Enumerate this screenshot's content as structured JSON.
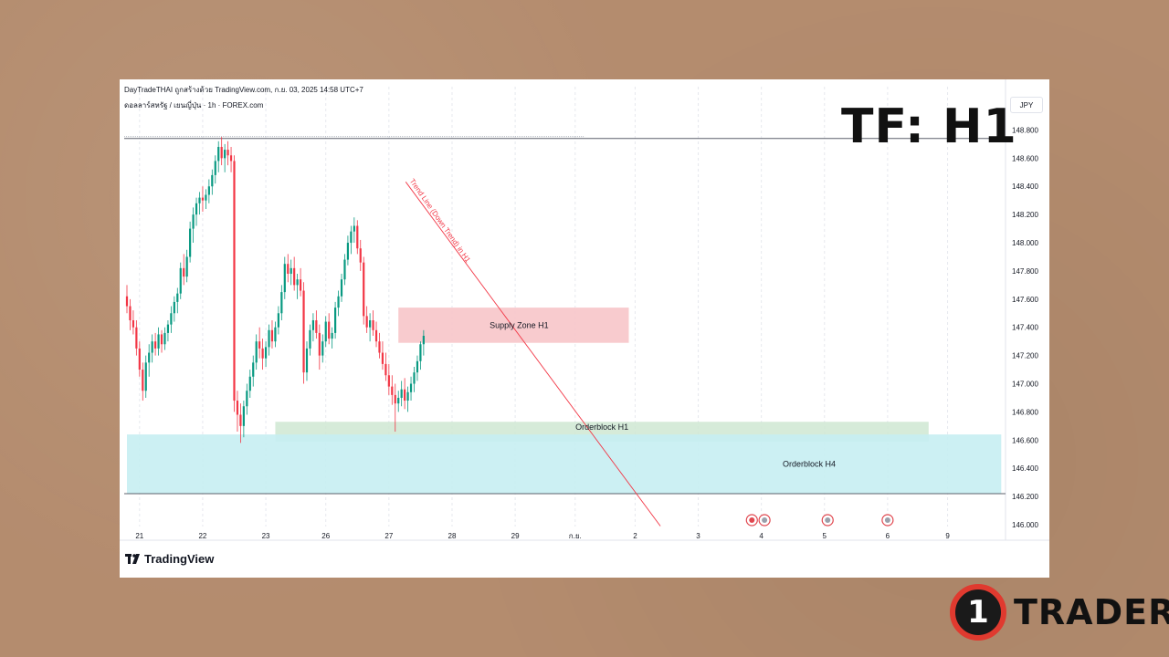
{
  "header": {
    "line1": "DayTradeTHAI ถูกสร้างด้วย TradingView.com, ก.ย. 03, 2025 14:58 UTC+7",
    "line2": "ดอลลาร์สหรัฐ / เยนญี่ปุ่น · 1h · FOREX.com"
  },
  "currency": "JPY",
  "tf_label": "TF: H1",
  "brand": {
    "tradingview": "TradingView",
    "logo_number": "1",
    "logo_text": "TRADER"
  },
  "colors": {
    "up": "#089981",
    "down": "#f23645",
    "supply_zone": "#f7c5c9",
    "ob_h1": "#cfe8d2",
    "ob_h4": "#c7eef2",
    "trendline": "#f23645",
    "grid": "#e6e8ee"
  },
  "chart_data": {
    "type": "candlestick",
    "ylim": [
      146.0,
      148.9
    ],
    "y_ticks": [
      "148.800",
      "148.600",
      "148.400",
      "148.200",
      "148.000",
      "147.800",
      "147.600",
      "147.400",
      "147.200",
      "147.000",
      "146.800",
      "146.600",
      "146.400",
      "146.200",
      "146.000"
    ],
    "x_ticks": [
      {
        "label": "21",
        "t": 4
      },
      {
        "label": "22",
        "t": 24
      },
      {
        "label": "23",
        "t": 44
      },
      {
        "label": "26",
        "t": 63
      },
      {
        "label": "27",
        "t": 83
      },
      {
        "label": "28",
        "t": 103
      },
      {
        "label": "29",
        "t": 123
      },
      {
        "label": "ก.ย.",
        "t": 142
      },
      {
        "label": "2",
        "t": 161
      },
      {
        "label": "3",
        "t": 181
      },
      {
        "label": "4",
        "t": 201
      },
      {
        "label": "5",
        "t": 221
      },
      {
        "label": "6",
        "t": 241
      },
      {
        "label": "9",
        "t": 260
      }
    ],
    "zones": [
      {
        "name": "Supply Zone H1",
        "t1": 86,
        "t2": 159,
        "y_low": 147.29,
        "y_high": 147.54
      },
      {
        "name": "Orderblock H1",
        "t1": 47,
        "t2": 254,
        "y_low": 146.59,
        "y_high": 146.73
      },
      {
        "name": "Orderblock H4",
        "t1": 0,
        "t2": 277,
        "y_low": 146.22,
        "y_high": 146.64
      }
    ],
    "trendline": {
      "label": "Trend Line (Down Trend) in H1",
      "t1": 97,
      "y1": 148.16,
      "t2": 169,
      "y2": 145.99
    },
    "horizontal_lines": [
      148.74,
      146.22
    ],
    "event_icons": [
      {
        "t": 198
      },
      {
        "t": 202
      },
      {
        "t": 222
      },
      {
        "t": 241
      }
    ],
    "candles": [
      [
        147.62,
        147.7,
        147.5,
        147.55
      ],
      [
        147.55,
        147.6,
        147.38,
        147.45
      ],
      [
        147.45,
        147.52,
        147.35,
        147.4
      ],
      [
        147.4,
        147.45,
        147.2,
        147.25
      ],
      [
        147.25,
        147.3,
        147.05,
        147.1
      ],
      [
        147.1,
        147.15,
        146.88,
        146.95
      ],
      [
        146.95,
        147.2,
        146.9,
        147.15
      ],
      [
        147.15,
        147.28,
        147.05,
        147.22
      ],
      [
        147.22,
        147.35,
        147.15,
        147.3
      ],
      [
        147.3,
        147.36,
        147.2,
        147.25
      ],
      [
        147.25,
        147.4,
        147.2,
        147.35
      ],
      [
        147.35,
        147.38,
        147.22,
        147.28
      ],
      [
        147.28,
        147.4,
        147.24,
        147.36
      ],
      [
        147.36,
        147.45,
        147.3,
        147.42
      ],
      [
        147.42,
        147.55,
        147.36,
        147.5
      ],
      [
        147.5,
        147.62,
        147.44,
        147.58
      ],
      [
        147.58,
        147.68,
        147.5,
        147.64
      ],
      [
        147.64,
        147.86,
        147.6,
        147.82
      ],
      [
        147.82,
        147.92,
        147.7,
        147.76
      ],
      [
        147.76,
        147.95,
        147.72,
        147.9
      ],
      [
        147.9,
        148.15,
        147.86,
        148.1
      ],
      [
        148.1,
        148.25,
        148.0,
        148.2
      ],
      [
        148.2,
        148.32,
        148.12,
        148.28
      ],
      [
        148.28,
        148.36,
        148.2,
        148.32
      ],
      [
        148.32,
        148.4,
        148.22,
        148.3
      ],
      [
        148.3,
        148.38,
        148.24,
        148.34
      ],
      [
        148.34,
        148.45,
        148.28,
        148.4
      ],
      [
        148.4,
        148.52,
        148.34,
        148.48
      ],
      [
        148.48,
        148.62,
        148.42,
        148.58
      ],
      [
        148.58,
        148.72,
        148.5,
        148.68
      ],
      [
        148.68,
        148.75,
        148.55,
        148.6
      ],
      [
        148.6,
        148.7,
        148.5,
        148.66
      ],
      [
        148.66,
        148.72,
        148.55,
        148.62
      ],
      [
        148.62,
        148.68,
        148.5,
        148.58
      ],
      [
        148.58,
        148.62,
        146.8,
        146.88
      ],
      [
        146.88,
        146.95,
        146.66,
        146.78
      ],
      [
        146.78,
        146.86,
        146.58,
        146.7
      ],
      [
        146.7,
        146.88,
        146.62,
        146.84
      ],
      [
        146.84,
        147.0,
        146.78,
        146.95
      ],
      [
        146.95,
        147.1,
        146.9,
        147.05
      ],
      [
        147.05,
        147.2,
        146.98,
        147.15
      ],
      [
        147.15,
        147.35,
        147.1,
        147.3
      ],
      [
        147.3,
        147.4,
        147.18,
        147.25
      ],
      [
        147.25,
        147.32,
        147.1,
        147.18
      ],
      [
        147.18,
        147.3,
        147.12,
        147.26
      ],
      [
        147.26,
        147.42,
        147.2,
        147.38
      ],
      [
        147.38,
        147.45,
        147.25,
        147.3
      ],
      [
        147.3,
        147.44,
        147.26,
        147.4
      ],
      [
        147.4,
        147.55,
        147.35,
        147.5
      ],
      [
        147.5,
        147.7,
        147.45,
        147.65
      ],
      [
        147.65,
        147.9,
        147.6,
        147.85
      ],
      [
        147.85,
        147.92,
        147.72,
        147.78
      ],
      [
        147.78,
        147.88,
        147.7,
        147.82
      ],
      [
        147.82,
        147.9,
        147.66,
        147.7
      ],
      [
        147.7,
        147.78,
        147.6,
        147.74
      ],
      [
        147.74,
        147.82,
        147.62,
        147.66
      ],
      [
        147.66,
        147.72,
        147.0,
        147.08
      ],
      [
        147.08,
        147.3,
        147.02,
        147.25
      ],
      [
        147.25,
        147.42,
        147.2,
        147.38
      ],
      [
        147.38,
        147.5,
        147.3,
        147.45
      ],
      [
        147.45,
        147.52,
        147.32,
        147.36
      ],
      [
        147.36,
        147.42,
        147.1,
        147.2
      ],
      [
        147.2,
        147.35,
        147.15,
        147.3
      ],
      [
        147.3,
        147.48,
        147.26,
        147.44
      ],
      [
        147.44,
        147.5,
        147.28,
        147.32
      ],
      [
        147.32,
        147.4,
        147.25,
        147.36
      ],
      [
        147.36,
        147.58,
        147.32,
        147.54
      ],
      [
        147.54,
        147.66,
        147.48,
        147.62
      ],
      [
        147.62,
        147.78,
        147.58,
        147.74
      ],
      [
        147.74,
        147.92,
        147.7,
        147.88
      ],
      [
        147.88,
        148.05,
        147.84,
        148.0
      ],
      [
        148.0,
        148.12,
        147.92,
        148.08
      ],
      [
        148.08,
        148.18,
        148.0,
        148.12
      ],
      [
        148.12,
        148.16,
        147.92,
        147.96
      ],
      [
        147.96,
        148.02,
        147.8,
        147.86
      ],
      [
        147.86,
        147.9,
        147.42,
        147.48
      ],
      [
        147.48,
        147.55,
        147.36,
        147.4
      ],
      [
        147.4,
        147.5,
        147.3,
        147.45
      ],
      [
        147.45,
        147.52,
        147.34,
        147.38
      ],
      [
        147.38,
        147.44,
        147.26,
        147.3
      ],
      [
        147.3,
        147.36,
        147.18,
        147.22
      ],
      [
        147.22,
        147.3,
        147.1,
        147.14
      ],
      [
        147.14,
        147.22,
        147.02,
        147.06
      ],
      [
        147.06,
        147.14,
        146.92,
        146.98
      ],
      [
        146.98,
        147.06,
        146.85,
        146.92
      ],
      [
        146.92,
        147.0,
        146.66,
        146.86
      ],
      [
        146.86,
        146.95,
        146.8,
        146.9
      ],
      [
        146.9,
        147.02,
        146.84,
        146.96
      ],
      [
        146.96,
        147.04,
        146.82,
        146.88
      ],
      [
        146.88,
        146.98,
        146.8,
        146.94
      ],
      [
        146.94,
        147.05,
        146.88,
        147.0
      ],
      [
        147.0,
        147.12,
        146.94,
        147.08
      ],
      [
        147.08,
        147.2,
        147.02,
        147.16
      ],
      [
        147.16,
        147.3,
        147.1,
        147.28
      ],
      [
        147.28,
        147.38,
        147.2,
        147.34
      ]
    ]
  }
}
